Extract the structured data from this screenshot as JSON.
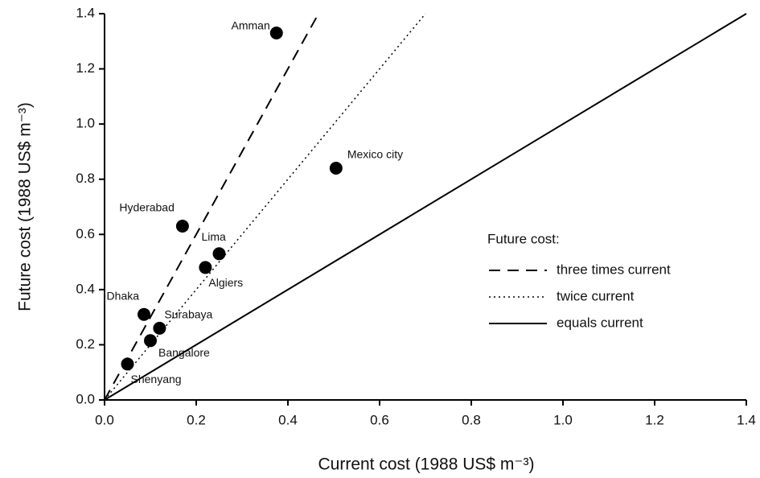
{
  "chart_data": {
    "type": "scatter",
    "x_label": "Current cost  (1988 US$ m⁻³)",
    "y_label": "Future cost  (1988 US$ m⁻³)",
    "legend_title": "Future cost:",
    "point_labels": [
      "Amman",
      "Mexico city",
      "Hyderabad",
      "Lima",
      "Algiers",
      "Dhaka",
      "Surabaya",
      "Bangalore",
      "Shenyang"
    ],
    "x": [
      0.375,
      0.505,
      0.17,
      0.25,
      0.22,
      0.086,
      0.12,
      0.1,
      0.05
    ],
    "values": [
      1.33,
      0.84,
      0.63,
      0.53,
      0.48,
      0.31,
      0.26,
      0.215,
      0.13
    ],
    "color": "#000000",
    "reference_lines": [
      {
        "name": "three times current",
        "slope": 3,
        "style": "dashed"
      },
      {
        "name": "twice current",
        "slope": 2,
        "style": "dotted"
      },
      {
        "name": "equals current",
        "slope": 1,
        "style": "solid"
      }
    ],
    "xlim": [
      0,
      1.4
    ],
    "ylim": [
      0,
      1.4
    ],
    "xticks": [
      {
        "value": 0,
        "label": "0.0"
      },
      0.2,
      0.4,
      0.6,
      0.8,
      {
        "value": 1,
        "label": "1.0"
      },
      1.2,
      1.4
    ],
    "yticks": [
      {
        "value": 0,
        "label": "0.0"
      },
      0.2,
      0.4,
      0.6,
      0.8,
      {
        "value": 1,
        "label": "1.0"
      },
      1.2,
      1.4
    ]
  }
}
